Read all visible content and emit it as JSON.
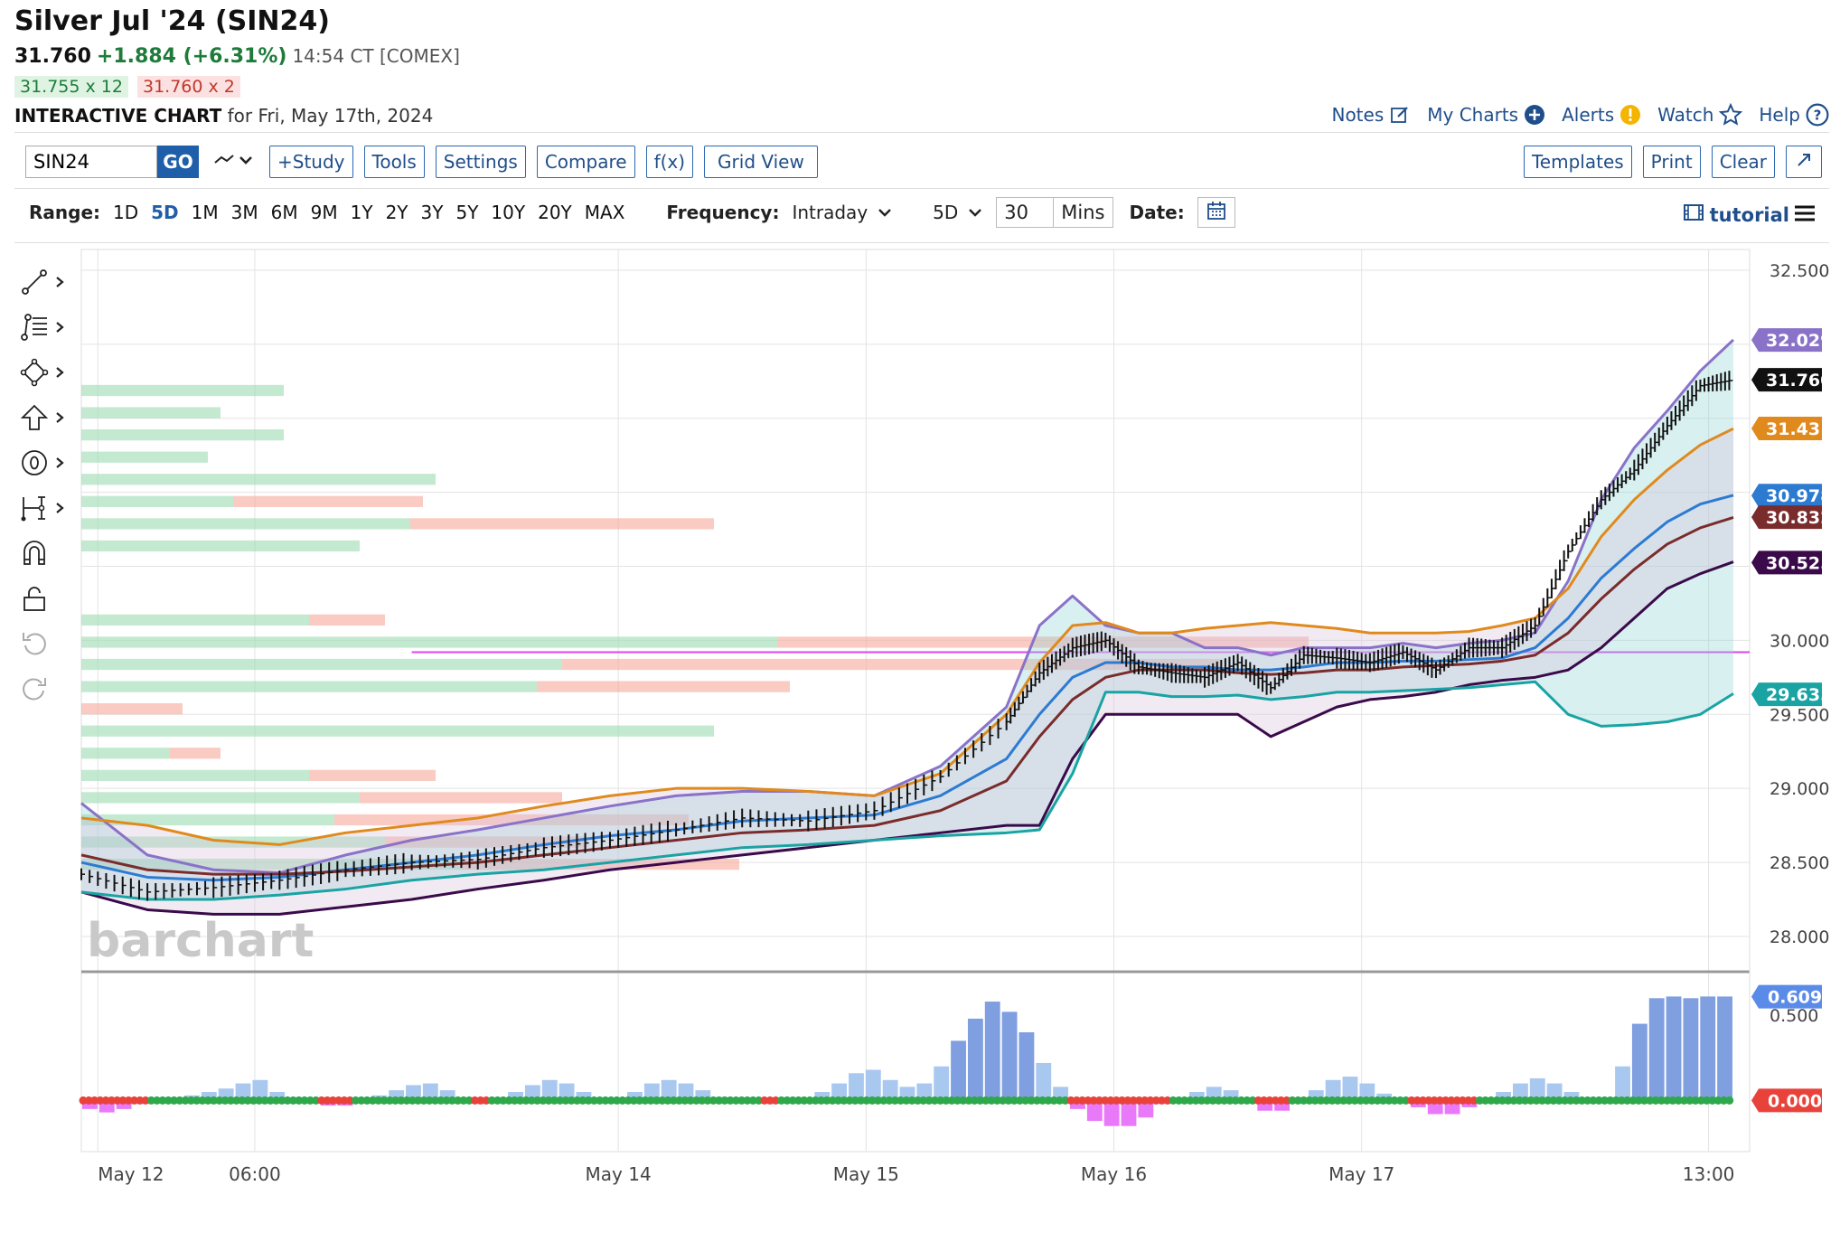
{
  "header": {
    "title": "Silver Jul '24 (SIN24)",
    "last": "31.760",
    "change": "+1.884 (+6.31%)",
    "time": "14:54 CT [COMEX]",
    "bid": "31.755 x 12",
    "ask": "31.760 x 2",
    "chart_label": "INTERACTIVE CHART",
    "chart_for": "for Fri, May 17th, 2024"
  },
  "top_links": [
    "Notes",
    "My Charts",
    "Alerts",
    "Watch",
    "Help"
  ],
  "toolbar": {
    "symbol": "SIN24",
    "go": "GO",
    "buttons": [
      "+Study",
      "Tools",
      "Settings",
      "Compare",
      "f(x)",
      "Grid View"
    ],
    "right_buttons": [
      "Templates",
      "Print",
      "Clear"
    ]
  },
  "rangebar": {
    "range_label": "Range:",
    "ranges": [
      "1D",
      "5D",
      "1M",
      "3M",
      "6M",
      "9M",
      "1Y",
      "2Y",
      "3Y",
      "5Y",
      "10Y",
      "20Y",
      "MAX"
    ],
    "active": "5D",
    "freq_label": "Frequency:",
    "frequency": "Intraday",
    "period": "5D",
    "interval": "30",
    "unit": "Mins",
    "date_label": "Date:",
    "tutorial": "tutorial"
  },
  "left_tools": [
    "line-tool-icon",
    "fib-tool-icon",
    "shape-tool-icon",
    "arrow-tool-icon",
    "text-tool-icon",
    "measure-tool-icon",
    "magnet-icon",
    "lock-icon",
    "undo-icon",
    "redo-icon"
  ],
  "colors": {
    "upper_band": "#8a72c8",
    "orange": "#e08a1e",
    "blue": "#2c7bd1",
    "brown": "#7a2c2c",
    "purple_dark": "#3a0a4a",
    "teal": "#1aa3a3",
    "green": "#2ea84a",
    "red": "#e8423b",
    "magenta": "#d946ef"
  },
  "watermark": "barchart",
  "chart_data": {
    "type": "line",
    "x_ticks": [
      "May 12",
      "06:00",
      "May 14",
      "May 15",
      "May 16",
      "May 17",
      "13:00"
    ],
    "y_ticks": [
      28.0,
      28.5,
      29.0,
      29.5,
      30.0,
      30.5,
      31.0,
      31.5,
      32.0,
      32.5
    ],
    "ylim": [
      27.78,
      32.64
    ],
    "y_tick_labels": [
      "28.000",
      "28.500",
      "29.000",
      "29.500",
      "30.000",
      "32.500"
    ],
    "price_labels": [
      {
        "value": 32.029,
        "text": "32.029",
        "color": "#8a72c8"
      },
      {
        "value": 31.76,
        "text": "31.760",
        "color": "#111111"
      },
      {
        "value": 31.431,
        "text": "31.431",
        "color": "#e08a1e"
      },
      {
        "value": 30.978,
        "text": "30.978",
        "color": "#2c7bd1"
      },
      {
        "value": 30.832,
        "text": "30.832",
        "color": "#7a2c2c"
      },
      {
        "value": 30.525,
        "text": "30.525",
        "color": "#3a0a4a"
      },
      {
        "value": 29.635,
        "text": "29.635",
        "color": "#1aa3a3"
      }
    ],
    "poc_value": 29.92,
    "price": {
      "t": [
        0,
        0.04,
        0.08,
        0.12,
        0.16,
        0.2,
        0.24,
        0.28,
        0.32,
        0.36,
        0.4,
        0.44,
        0.48,
        0.52,
        0.56,
        0.58,
        0.6,
        0.62,
        0.64,
        0.66,
        0.68,
        0.7,
        0.72,
        0.74,
        0.76,
        0.78,
        0.8,
        0.82,
        0.84,
        0.86,
        0.88,
        0.9,
        0.92,
        0.94,
        0.96,
        0.98,
        1.0
      ],
      "close": [
        28.42,
        28.3,
        28.33,
        28.38,
        28.45,
        28.5,
        28.52,
        28.6,
        28.65,
        28.72,
        28.8,
        28.78,
        28.85,
        29.08,
        29.45,
        29.78,
        29.95,
        30.0,
        29.82,
        29.78,
        29.75,
        29.85,
        29.68,
        29.9,
        29.88,
        29.85,
        29.92,
        29.8,
        29.95,
        29.95,
        30.1,
        30.6,
        30.95,
        31.15,
        31.45,
        31.72,
        31.76
      ]
    },
    "upper_band": [
      28.9,
      28.55,
      28.45,
      28.43,
      28.55,
      28.65,
      28.72,
      28.8,
      28.88,
      28.95,
      28.98,
      28.98,
      28.95,
      29.15,
      29.55,
      30.1,
      30.3,
      30.1,
      30.05,
      30.05,
      29.95,
      29.95,
      29.9,
      29.95,
      29.95,
      29.95,
      29.98,
      29.95,
      29.98,
      30.0,
      30.05,
      30.4,
      30.95,
      31.3,
      31.55,
      31.82,
      32.03
    ],
    "orange_line": [
      28.8,
      28.75,
      28.65,
      28.62,
      28.7,
      28.75,
      28.8,
      28.88,
      28.95,
      29.0,
      29.0,
      28.98,
      28.95,
      29.1,
      29.5,
      29.85,
      30.1,
      30.12,
      30.05,
      30.05,
      30.08,
      30.1,
      30.12,
      30.1,
      30.08,
      30.05,
      30.05,
      30.05,
      30.06,
      30.1,
      30.15,
      30.35,
      30.7,
      30.95,
      31.15,
      31.32,
      31.43
    ],
    "blue_line": [
      28.5,
      28.4,
      28.38,
      28.4,
      28.45,
      28.5,
      28.55,
      28.62,
      28.68,
      28.72,
      28.78,
      28.8,
      28.82,
      28.95,
      29.2,
      29.5,
      29.75,
      29.85,
      29.85,
      29.82,
      29.82,
      29.8,
      29.8,
      29.82,
      29.85,
      29.85,
      29.86,
      29.86,
      29.87,
      29.88,
      29.95,
      30.15,
      30.42,
      30.62,
      30.8,
      30.92,
      30.98
    ],
    "brown_line": [
      28.55,
      28.45,
      28.42,
      28.42,
      28.44,
      28.47,
      28.5,
      28.55,
      28.6,
      28.65,
      28.7,
      28.72,
      28.75,
      28.85,
      29.05,
      29.35,
      29.6,
      29.75,
      29.8,
      29.8,
      29.8,
      29.78,
      29.77,
      29.78,
      29.8,
      29.8,
      29.82,
      29.83,
      29.84,
      29.86,
      29.9,
      30.05,
      30.28,
      30.48,
      30.65,
      30.76,
      30.83
    ],
    "dark_line": [
      28.3,
      28.18,
      28.15,
      28.15,
      28.2,
      28.25,
      28.32,
      28.38,
      28.45,
      28.5,
      28.55,
      28.6,
      28.65,
      28.7,
      28.75,
      28.75,
      29.2,
      29.5,
      29.5,
      29.5,
      29.5,
      29.5,
      29.35,
      29.45,
      29.55,
      29.6,
      29.62,
      29.65,
      29.7,
      29.73,
      29.75,
      29.8,
      29.95,
      30.15,
      30.35,
      30.45,
      30.53
    ],
    "teal_line": [
      28.3,
      28.25,
      28.25,
      28.28,
      28.32,
      28.38,
      28.42,
      28.45,
      28.5,
      28.55,
      28.6,
      28.62,
      28.65,
      28.68,
      28.7,
      28.72,
      29.1,
      29.65,
      29.65,
      29.62,
      29.62,
      29.63,
      29.6,
      29.62,
      29.65,
      29.65,
      29.66,
      29.67,
      29.68,
      29.7,
      29.72,
      29.5,
      29.42,
      29.43,
      29.45,
      29.5,
      29.64
    ],
    "volume_profile": [
      {
        "price": 31.65,
        "buy": 0.16,
        "sell": 0.0
      },
      {
        "price": 31.5,
        "buy": 0.11,
        "sell": 0.0
      },
      {
        "price": 31.35,
        "buy": 0.16,
        "sell": 0.0
      },
      {
        "price": 31.2,
        "buy": 0.1,
        "sell": 0.0
      },
      {
        "price": 31.05,
        "buy": 0.28,
        "sell": 0.0
      },
      {
        "price": 30.9,
        "buy": 0.12,
        "sell": 0.15
      },
      {
        "price": 30.75,
        "buy": 0.26,
        "sell": 0.24
      },
      {
        "price": 30.6,
        "buy": 0.22,
        "sell": 0.0
      },
      {
        "price": 30.1,
        "buy": 0.18,
        "sell": 0.06
      },
      {
        "price": 29.95,
        "buy": 0.55,
        "sell": 0.42
      },
      {
        "price": 29.8,
        "buy": 0.38,
        "sell": 0.52
      },
      {
        "price": 29.65,
        "buy": 0.36,
        "sell": 0.2
      },
      {
        "price": 29.5,
        "buy": 0.0,
        "sell": 0.08
      },
      {
        "price": 29.35,
        "buy": 0.5,
        "sell": 0.0
      },
      {
        "price": 29.2,
        "buy": 0.07,
        "sell": 0.04
      },
      {
        "price": 29.05,
        "buy": 0.18,
        "sell": 0.1
      },
      {
        "price": 28.9,
        "buy": 0.22,
        "sell": 0.16
      },
      {
        "price": 28.75,
        "buy": 0.2,
        "sell": 0.28
      },
      {
        "price": 28.6,
        "buy": 0.24,
        "sell": 0.16
      },
      {
        "price": 28.45,
        "buy": 0.3,
        "sell": 0.22
      },
      {
        "price": 28.3,
        "buy": 0.0,
        "sell": 0.0
      }
    ],
    "oscillator": {
      "y_ticks": [
        0.0,
        0.5
      ],
      "y_tick_labels": [
        "0.000",
        "0.500"
      ],
      "ylim": [
        -0.3,
        0.75
      ],
      "value_label": "0.609",
      "zero_label": "0.000",
      "bars": [
        -0.05,
        -0.07,
        -0.05,
        -0.02,
        0.0,
        0.0,
        0.03,
        0.05,
        0.07,
        0.1,
        0.12,
        0.05,
        0.0,
        0.0,
        -0.03,
        -0.03,
        0.0,
        0.03,
        0.06,
        0.09,
        0.1,
        0.06,
        0.0,
        -0.02,
        0.0,
        0.05,
        0.09,
        0.12,
        0.1,
        0.05,
        0.0,
        0.0,
        0.05,
        0.1,
        0.12,
        0.1,
        0.06,
        0.02,
        0.0,
        0.0,
        -0.02,
        0.0,
        0.0,
        0.05,
        0.1,
        0.16,
        0.18,
        0.12,
        0.08,
        0.1,
        0.2,
        0.35,
        0.48,
        0.58,
        0.52,
        0.4,
        0.22,
        0.08,
        -0.05,
        -0.12,
        -0.15,
        -0.15,
        -0.1,
        -0.02,
        0.0,
        0.05,
        0.08,
        0.06,
        0.0,
        -0.06,
        -0.06,
        0.0,
        0.06,
        0.12,
        0.14,
        0.1,
        0.04,
        0.0,
        -0.04,
        -0.08,
        -0.08,
        -0.04,
        0.0,
        0.05,
        0.1,
        0.13,
        0.1,
        0.05,
        0.0,
        0.0,
        0.2,
        0.45,
        0.6,
        0.61,
        0.6,
        0.61,
        0.61
      ]
    }
  }
}
